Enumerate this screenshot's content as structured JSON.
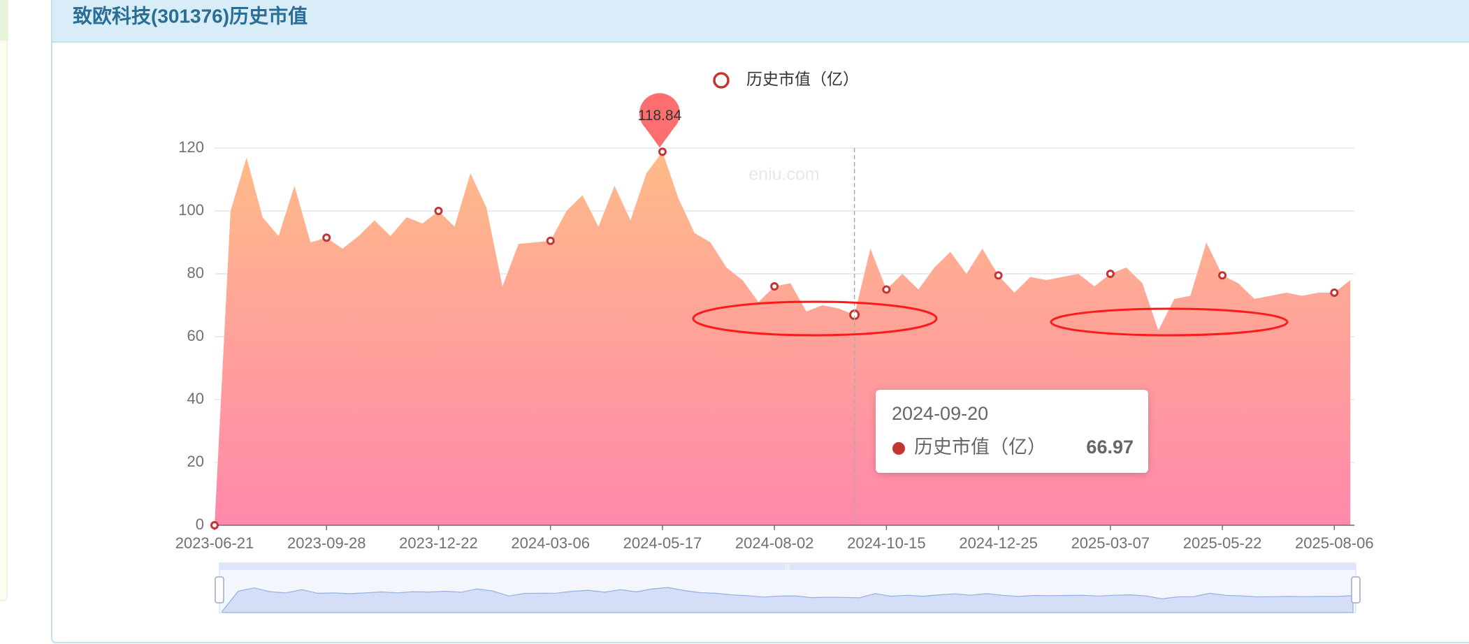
{
  "header": {
    "title": "致欧科技(301376)历史市值"
  },
  "chart_data": {
    "type": "area",
    "watermark": "eniu.com",
    "categories": [
      "2023-06-21",
      null,
      null,
      null,
      null,
      null,
      null,
      "2023-09-28",
      null,
      null,
      null,
      null,
      null,
      null,
      "2023-12-22",
      null,
      null,
      null,
      null,
      null,
      null,
      "2024-03-06",
      null,
      null,
      null,
      null,
      null,
      null,
      "2024-05-17",
      null,
      null,
      null,
      null,
      null,
      null,
      "2024-08-02",
      null,
      null,
      null,
      null,
      "2024-09-20",
      null,
      "2024-10-15",
      null,
      null,
      null,
      null,
      null,
      null,
      "2024-12-25",
      null,
      null,
      null,
      null,
      null,
      null,
      "2025-03-07",
      null,
      null,
      null,
      null,
      null,
      null,
      "2025-05-22",
      null,
      null,
      null,
      null,
      null,
      null,
      "2025-08-06",
      null
    ],
    "series": [
      {
        "name": "历史市值（亿）",
        "color": "#c23531",
        "gradient": [
          "#ffbb88",
          "#ff88ab"
        ],
        "values": [
          0,
          100,
          117,
          98,
          92,
          108,
          90,
          91.5,
          88,
          92,
          97,
          92,
          98,
          96,
          100,
          95,
          112,
          101,
          76,
          89.5,
          90,
          90.5,
          100,
          105,
          95,
          108,
          97,
          112,
          118.84,
          104,
          93,
          90,
          82,
          78,
          71,
          76,
          77,
          68,
          70,
          69,
          66.97,
          88,
          75,
          80,
          75,
          82,
          87,
          80,
          88,
          79.5,
          74,
          79,
          78,
          79,
          80,
          76,
          80,
          82,
          77,
          62,
          72,
          73,
          90,
          79.5,
          77,
          72,
          73,
          74,
          73,
          74,
          74,
          78
        ]
      }
    ],
    "ylim": [
      0,
      120
    ],
    "yticks": [
      0,
      20,
      40,
      60,
      80,
      100,
      120
    ],
    "grid": true,
    "legend": "top",
    "mark_point": "max",
    "tooltip": {
      "x": "2024-09-20"
    }
  }
}
